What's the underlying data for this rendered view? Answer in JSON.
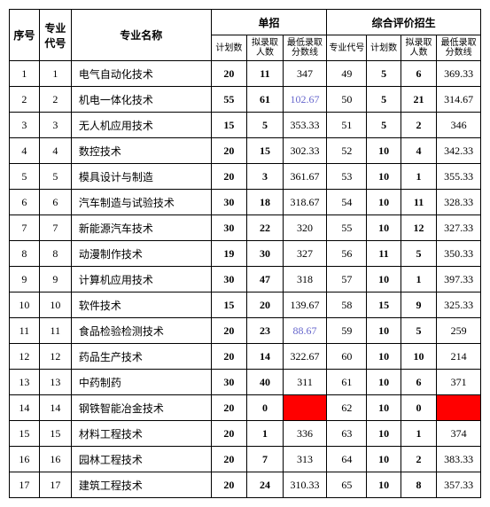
{
  "headers": {
    "seq": "序号",
    "code": "专业代号",
    "name": "专业名称",
    "group1": "单招",
    "group2": "综合评价招生",
    "plan": "计划数",
    "num": "拟录取人数",
    "score": "最低录取分数线",
    "code2": "专业代号"
  },
  "rows": [
    {
      "seq": "1",
      "code1": "1",
      "name": "电气自动化技术",
      "plan1": "20",
      "num1": "11",
      "score1": "347",
      "code2": "49",
      "plan2": "5",
      "num2": "6",
      "score2": "369.33",
      "score1_special": false,
      "red1": false,
      "red2": false
    },
    {
      "seq": "2",
      "code1": "2",
      "name": "机电一体化技术",
      "plan1": "55",
      "num1": "61",
      "score1": "102.67",
      "code2": "50",
      "plan2": "5",
      "num2": "21",
      "score2": "314.67",
      "score1_special": true,
      "red1": false,
      "red2": false
    },
    {
      "seq": "3",
      "code1": "3",
      "name": "无人机应用技术",
      "plan1": "15",
      "num1": "5",
      "score1": "353.33",
      "code2": "51",
      "plan2": "5",
      "num2": "2",
      "score2": "346",
      "score1_special": false,
      "red1": false,
      "red2": false
    },
    {
      "seq": "4",
      "code1": "4",
      "name": "数控技术",
      "plan1": "20",
      "num1": "15",
      "score1": "302.33",
      "code2": "52",
      "plan2": "10",
      "num2": "4",
      "score2": "342.33",
      "score1_special": false,
      "red1": false,
      "red2": false
    },
    {
      "seq": "5",
      "code1": "5",
      "name": "模具设计与制造",
      "plan1": "20",
      "num1": "3",
      "score1": "361.67",
      "code2": "53",
      "plan2": "10",
      "num2": "1",
      "score2": "355.33",
      "score1_special": false,
      "red1": false,
      "red2": false
    },
    {
      "seq": "6",
      "code1": "6",
      "name": "汽车制造与试验技术",
      "plan1": "30",
      "num1": "18",
      "score1": "318.67",
      "code2": "54",
      "plan2": "10",
      "num2": "11",
      "score2": "328.33",
      "score1_special": false,
      "red1": false,
      "red2": false
    },
    {
      "seq": "7",
      "code1": "7",
      "name": "新能源汽车技术",
      "plan1": "30",
      "num1": "22",
      "score1": "320",
      "code2": "55",
      "plan2": "10",
      "num2": "12",
      "score2": "327.33",
      "score1_special": false,
      "red1": false,
      "red2": false
    },
    {
      "seq": "8",
      "code1": "8",
      "name": "动漫制作技术",
      "plan1": "19",
      "num1": "30",
      "score1": "327",
      "code2": "56",
      "plan2": "11",
      "num2": "5",
      "score2": "350.33",
      "score1_special": false,
      "red1": false,
      "red2": false
    },
    {
      "seq": "9",
      "code1": "9",
      "name": "计算机应用技术",
      "plan1": "30",
      "num1": "47",
      "score1": "318",
      "code2": "57",
      "plan2": "10",
      "num2": "1",
      "score2": "397.33",
      "score1_special": false,
      "red1": false,
      "red2": false
    },
    {
      "seq": "10",
      "code1": "10",
      "name": "软件技术",
      "plan1": "15",
      "num1": "20",
      "score1": "139.67",
      "code2": "58",
      "plan2": "15",
      "num2": "9",
      "score2": "325.33",
      "score1_special": false,
      "red1": false,
      "red2": false
    },
    {
      "seq": "11",
      "code1": "11",
      "name": "食品检验检测技术",
      "plan1": "20",
      "num1": "23",
      "score1": "88.67",
      "code2": "59",
      "plan2": "10",
      "num2": "5",
      "score2": "259",
      "score1_special": true,
      "red1": false,
      "red2": false
    },
    {
      "seq": "12",
      "code1": "12",
      "name": "药品生产技术",
      "plan1": "20",
      "num1": "14",
      "score1": "322.67",
      "code2": "60",
      "plan2": "10",
      "num2": "10",
      "score2": "214",
      "score1_special": false,
      "red1": false,
      "red2": false
    },
    {
      "seq": "13",
      "code1": "13",
      "name": "中药制药",
      "plan1": "30",
      "num1": "40",
      "score1": "311",
      "code2": "61",
      "plan2": "10",
      "num2": "6",
      "score2": "371",
      "score1_special": false,
      "red1": false,
      "red2": false
    },
    {
      "seq": "14",
      "code1": "14",
      "name": "钢铁智能冶金技术",
      "plan1": "20",
      "num1": "0",
      "score1": "",
      "code2": "62",
      "plan2": "10",
      "num2": "0",
      "score2": "",
      "score1_special": false,
      "red1": true,
      "red2": true
    },
    {
      "seq": "15",
      "code1": "15",
      "name": "材料工程技术",
      "plan1": "20",
      "num1": "1",
      "score1": "336",
      "code2": "63",
      "plan2": "10",
      "num2": "1",
      "score2": "374",
      "score1_special": false,
      "red1": false,
      "red2": false
    },
    {
      "seq": "16",
      "code1": "16",
      "name": "园林工程技术",
      "plan1": "20",
      "num1": "7",
      "score1": "313",
      "code2": "64",
      "plan2": "10",
      "num2": "2",
      "score2": "383.33",
      "score1_special": false,
      "red1": false,
      "red2": false
    },
    {
      "seq": "17",
      "code1": "17",
      "name": "建筑工程技术",
      "plan1": "20",
      "num1": "24",
      "score1": "310.33",
      "code2": "65",
      "plan2": "10",
      "num2": "8",
      "score2": "357.33",
      "score1_special": false,
      "red1": false,
      "red2": false
    }
  ],
  "colors": {
    "special_score": "#6666cc",
    "red_cell": "#ff0000"
  }
}
